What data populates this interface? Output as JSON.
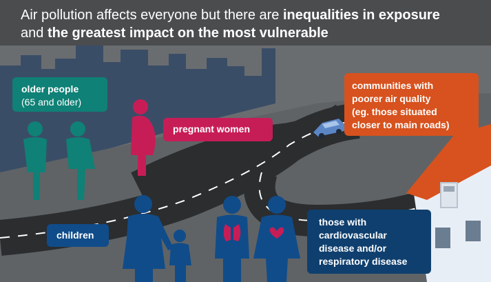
{
  "header": {
    "line1_normal": "Air pollution affects everyone but there are ",
    "line1_bold": "inequalities in exposure",
    "line2_normal": "and ",
    "line2_bold": "the greatest impact on the most vulnerable"
  },
  "labels": {
    "older": [
      "older people",
      "(65 and older)"
    ],
    "pregnant": "pregnant women",
    "communities": [
      "communities with",
      "poorer air quality",
      "(eg. those situated",
      "closer to main roads)"
    ],
    "children": "children",
    "disease": [
      "those with",
      "cardiovascular",
      "disease and/or",
      "respiratory disease"
    ]
  },
  "colors": {
    "header_bg": "#4a4c4e",
    "older": "#0f8176",
    "pregnant": "#c71d57",
    "communities": "#d7521e",
    "children": "#104c8a",
    "disease": "#0f3f6e",
    "road": "#2b2d2f",
    "skyline": "#3a4d66"
  }
}
